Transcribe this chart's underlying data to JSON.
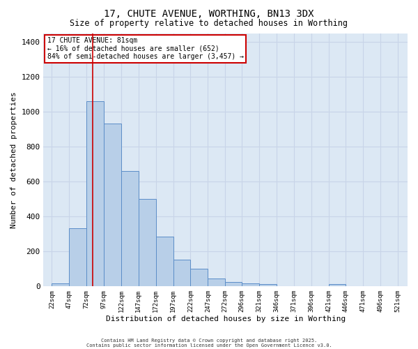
{
  "title_line1": "17, CHUTE AVENUE, WORTHING, BN13 3DX",
  "title_line2": "Size of property relative to detached houses in Worthing",
  "xlabel": "Distribution of detached houses by size in Worthing",
  "ylabel": "Number of detached properties",
  "bin_labels": [
    "22sqm",
    "47sqm",
    "72sqm",
    "97sqm",
    "122sqm",
    "147sqm",
    "172sqm",
    "197sqm",
    "222sqm",
    "247sqm",
    "272sqm",
    "296sqm",
    "321sqm",
    "346sqm",
    "371sqm",
    "396sqm",
    "421sqm",
    "446sqm",
    "471sqm",
    "496sqm",
    "521sqm"
  ],
  "bin_left_edges": [
    22,
    47,
    72,
    97,
    122,
    147,
    172,
    197,
    222,
    247,
    272,
    296,
    321,
    346,
    371,
    396,
    421,
    446,
    471,
    496
  ],
  "bin_widths": [
    25,
    25,
    25,
    25,
    25,
    25,
    25,
    25,
    25,
    25,
    24,
    25,
    25,
    25,
    25,
    25,
    25,
    25,
    25,
    25
  ],
  "bar_heights": [
    15,
    330,
    1060,
    930,
    660,
    500,
    285,
    150,
    100,
    45,
    25,
    15,
    10,
    0,
    0,
    0,
    10,
    0,
    0,
    0
  ],
  "bar_color": "#b8cfe8",
  "bar_edge_color": "#5b8dc8",
  "red_line_x": 81,
  "ylim": [
    0,
    1450
  ],
  "yticks": [
    0,
    200,
    400,
    600,
    800,
    1000,
    1200,
    1400
  ],
  "xlim_left": 10,
  "xlim_right": 535,
  "grid_color": "#c8d4e8",
  "bg_color": "#dce8f4",
  "annotation_title": "17 CHUTE AVENUE: 81sqm",
  "annotation_line2": "← 16% of detached houses are smaller (652)",
  "annotation_line3": "84% of semi-detached houses are larger (3,457) →",
  "annotation_box_color": "#cc0000",
  "footer_line1": "Contains HM Land Registry data © Crown copyright and database right 2025.",
  "footer_line2": "Contains public sector information licensed under the Open Government Licence v3.0."
}
